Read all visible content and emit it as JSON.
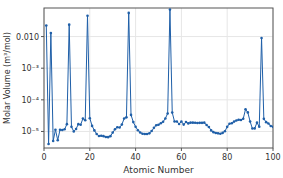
{
  "chart_data": {
    "type": "line",
    "title": "",
    "xlabel": "Atomic Number",
    "ylabel": "Molar Volume (m³/mol)",
    "log": "y",
    "marker": "circle",
    "x": [
      1,
      2,
      3,
      4,
      5,
      6,
      7,
      8,
      9,
      10,
      11,
      12,
      13,
      14,
      15,
      16,
      17,
      18,
      19,
      20,
      21,
      22,
      23,
      24,
      25,
      26,
      27,
      28,
      29,
      30,
      31,
      32,
      33,
      34,
      35,
      36,
      37,
      38,
      39,
      40,
      41,
      42,
      43,
      44,
      45,
      46,
      47,
      48,
      49,
      50,
      51,
      52,
      53,
      54,
      55,
      56,
      57,
      58,
      59,
      60,
      61,
      62,
      63,
      64,
      65,
      66,
      67,
      68,
      69,
      70,
      71,
      72,
      73,
      74,
      75,
      76,
      77,
      78,
      79,
      80,
      81,
      82,
      83,
      84,
      85,
      86,
      87,
      88,
      89,
      90,
      91,
      92,
      93,
      94,
      95,
      96,
      97,
      98,
      99,
      100
    ],
    "values": [
      0.0224,
      4e-06,
      0.013,
      5e-06,
      1.13e-05,
      5.3e-06,
      1.13e-05,
      1.11e-05,
      1.17e-05,
      1.7e-05,
      0.0238,
      1.4e-05,
      1e-05,
      1.2e-05,
      1.7e-05,
      1.63e-05,
      2.56e-05,
      2.25e-05,
      0.0455,
      2.62e-05,
      1.5e-05,
      1.08e-05,
      8.3e-06,
      7.2e-06,
      7.3e-06,
      7.1e-06,
      6.7e-06,
      6.6e-06,
      7.1e-06,
      9.2e-06,
      1.17e-05,
      1.36e-05,
      1.33e-05,
      1.65e-05,
      2.57e-05,
      2.79e-05,
      0.0559,
      3.34e-05,
      1.98e-05,
      1.41e-05,
      1.09e-05,
      9.3e-06,
      8.5e-06,
      8.3e-06,
      8.3e-06,
      8.7e-06,
      1.03e-05,
      1.3e-05,
      1.57e-05,
      1.63e-05,
      1.81e-05,
      2.02e-05,
      2.58e-05,
      3.7e-05,
      0.0712,
      3.94e-05,
      2.06e-05,
      2.06e-05,
      1.73e-05,
      2.06e-05,
      1.65e-05,
      1.99e-05,
      1.8e-05,
      1.9e-05,
      1.9e-05,
      1.88e-05,
      1.86e-05,
      1.87e-05,
      1.87e-05,
      1.9e-05,
      1.6e-05,
      1.38e-05,
      1.08e-05,
      9.5e-06,
      8.9e-06,
      8.7e-06,
      8.5e-06,
      9e-06,
      1.02e-05,
      1.4e-05,
      1.76e-05,
      1.82e-05,
      2.05e-05,
      2.22e-05,
      2.34e-05,
      2.3e-05,
      2.52e-05,
      5.02e-05,
      4e-05,
      2.07e-05,
      1.24e-05,
      1.25e-05,
      1.9e-05,
      1.41e-05,
      0.009,
      2.5e-05,
      1.97e-05,
      1.79e-05,
      1.48e-05,
      1.4e-05
    ],
    "xlim": [
      0,
      100
    ],
    "xticks": [
      0,
      20,
      40,
      60,
      80,
      100
    ],
    "ylim": [
      3e-06,
      0.08
    ],
    "yticks": [
      {
        "value": 1e-05,
        "label": "10⁻⁵"
      },
      {
        "value": 0.0001,
        "label": "10⁻⁴"
      },
      {
        "value": 0.001,
        "label": "10⁻³"
      },
      {
        "value": 0.01,
        "label": "0.010"
      }
    ]
  }
}
